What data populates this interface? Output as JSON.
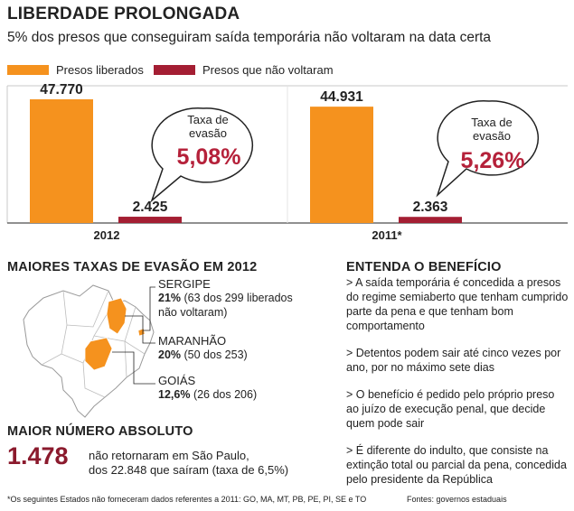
{
  "title": "LIBERDADE PROLONGADA",
  "subtitle": "5% dos presos que conseguiram saída temporária não voltaram na data certa",
  "colors": {
    "orange": "#f5921e",
    "crimson": "#a41e33",
    "rate": "#b5213a"
  },
  "chart_data": {
    "type": "bar",
    "categories": [
      "2012",
      "2011*"
    ],
    "series": [
      {
        "name": "Presos liberados",
        "values": [
          47770,
          44931
        ],
        "labels": [
          "47.770",
          "44.931"
        ],
        "color": "#f5921e"
      },
      {
        "name": "Presos que não voltaram",
        "values": [
          2425,
          2363
        ],
        "labels": [
          "2.425",
          "2.363"
        ],
        "color": "#a41e33"
      }
    ],
    "bubbles": [
      {
        "label_line1": "Taxa de",
        "label_line2": "evasão",
        "rate": "5,08%"
      },
      {
        "label_line1": "Taxa de",
        "label_line2": "evasão",
        "rate": "5,26%"
      }
    ],
    "ylim": [
      0,
      47770
    ],
    "grid": false,
    "legend": "top-left"
  },
  "states_section": {
    "title": "MAIORES TAXAS DE EVASÃO EM 2012",
    "states": [
      {
        "name": "SERGIPE",
        "pct": "21%",
        "detail": "(63 dos 299 liberados",
        "detail2": "não voltaram)"
      },
      {
        "name": "MARANHÃO",
        "pct": "20%",
        "detail": "(50 dos 253)"
      },
      {
        "name": "GOIÁS",
        "pct": "12,6%",
        "detail": "(26 dos 206)"
      }
    ]
  },
  "absolute_section": {
    "title": "MAIOR NÚMERO ABSOLUTO",
    "number": "1.478",
    "line1": "não retornaram em São Paulo,",
    "line2": "dos 22.848 que saíram (taxa de 6,5%)"
  },
  "benefit_section": {
    "title": "ENTENDA O BENEFÍCIO",
    "items": [
      "> A saída temporária é concedida a presos do regime semiaberto que tenham cumprido parte da pena e que tenham bom comportamento",
      "> Detentos podem sair até cinco vezes por ano, por no máximo sete dias",
      "> O benefício é pedido pelo próprio preso ao juízo de execução penal, que decide quem pode sair",
      "> É diferente do indulto, que consiste na extinção total ou parcial da pena, concedida pelo presidente da República"
    ]
  },
  "footnote": "*Os seguintes Estados não forneceram dados referentes a 2011: GO, MA, MT, PB, PE, PI, SE e TO",
  "sources": "Fontes: governos estaduais"
}
